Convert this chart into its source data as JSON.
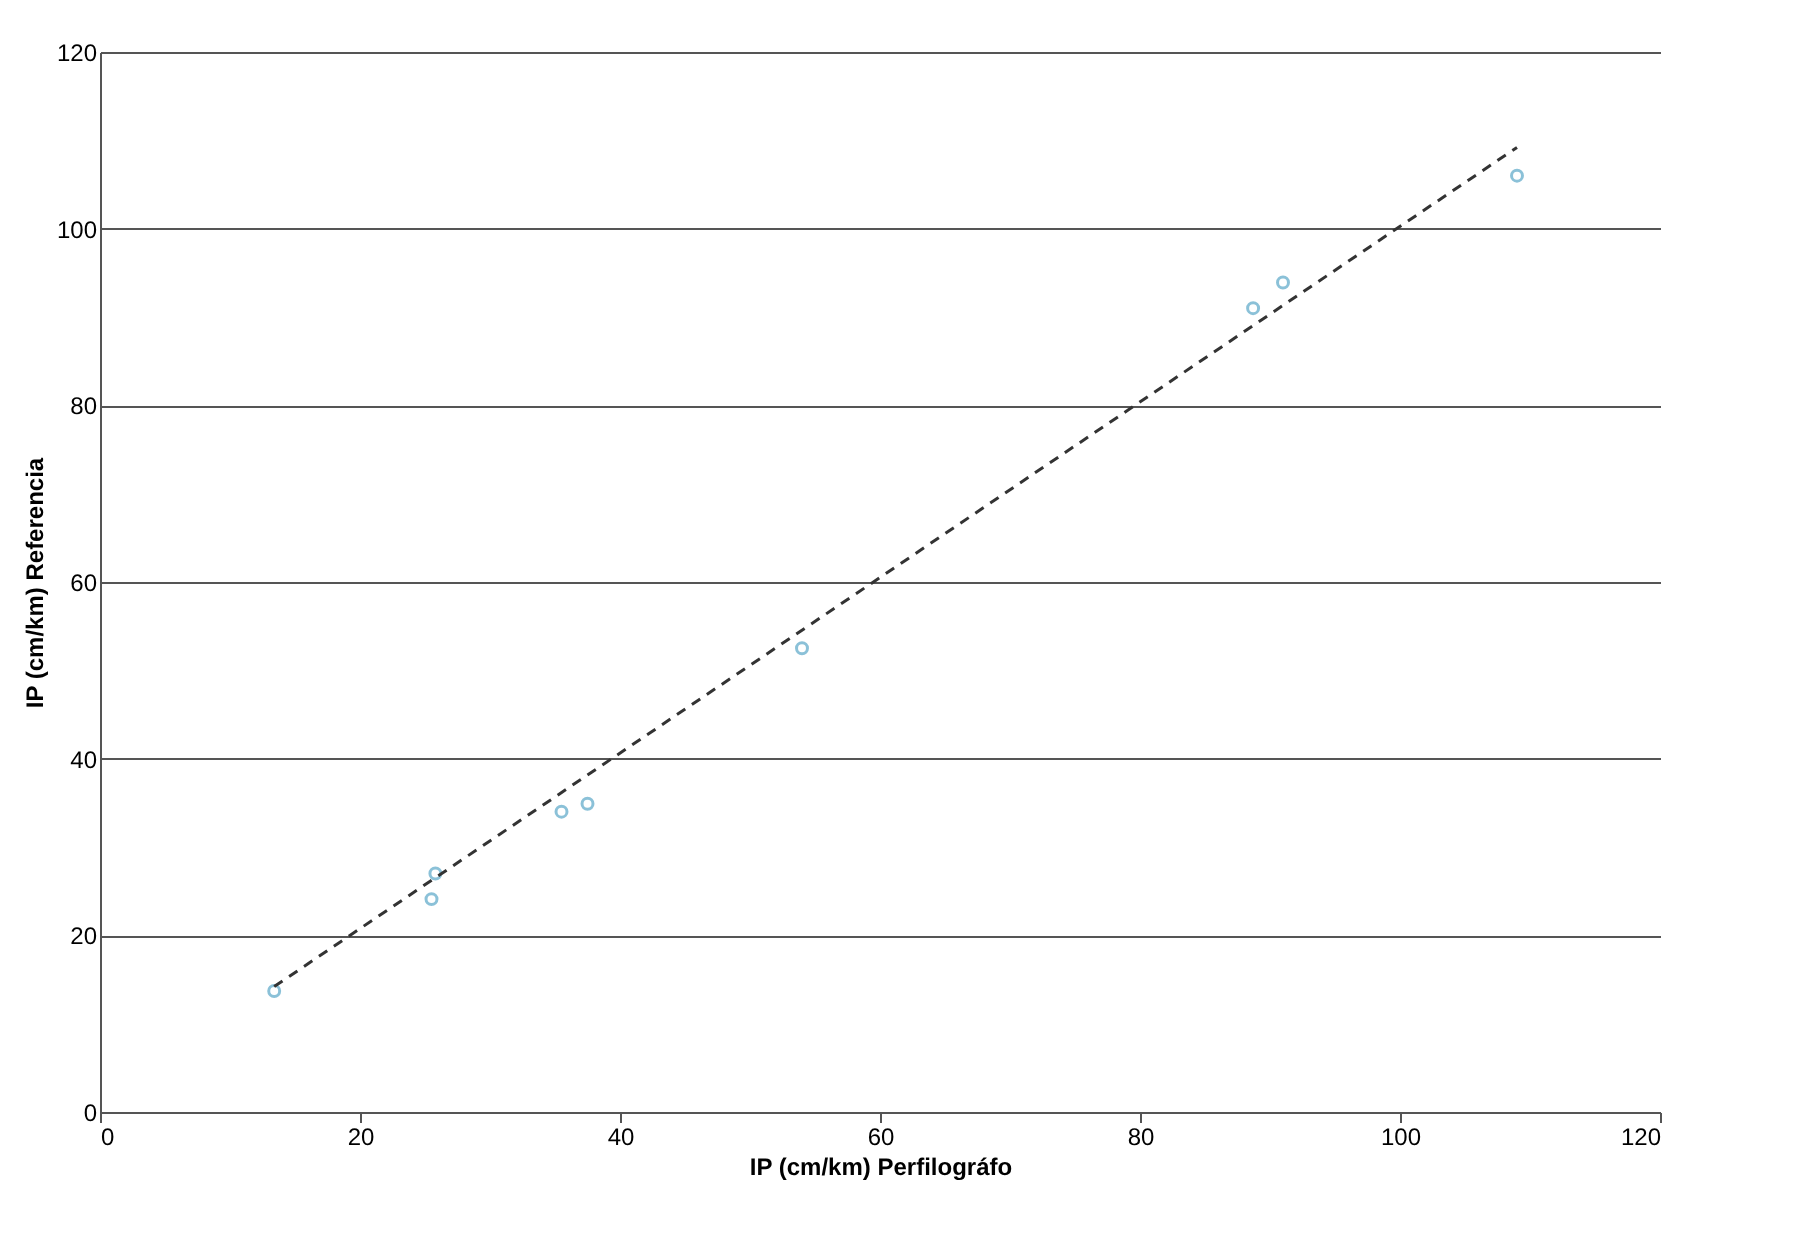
{
  "chart_data": {
    "type": "scatter",
    "xlabel": "IP (cm/km) Perfilográfo",
    "ylabel": "IP (cm/km) Referencia",
    "xlim": [
      0,
      120
    ],
    "xticks": [
      0,
      20,
      40,
      60,
      80,
      100,
      120
    ],
    "ylim": [
      0,
      120
    ],
    "yticks": [
      0,
      20,
      40,
      60,
      80,
      100,
      120
    ],
    "grid": "y",
    "series": [
      {
        "marker": "circle",
        "color": "#5ba8c8",
        "x": [
          13.4,
          25.5,
          25.8,
          35.5,
          37.5,
          54,
          88.7,
          91,
          109
        ],
        "values": [
          13.7,
          24.1,
          27,
          34,
          34.9,
          52.5,
          91,
          93.9,
          106
        ]
      },
      {
        "type": "line",
        "color": "#333333",
        "line_style": "dashed",
        "x": [
          13.4,
          109
        ],
        "values": [
          14.2,
          109.2
        ]
      }
    ]
  }
}
